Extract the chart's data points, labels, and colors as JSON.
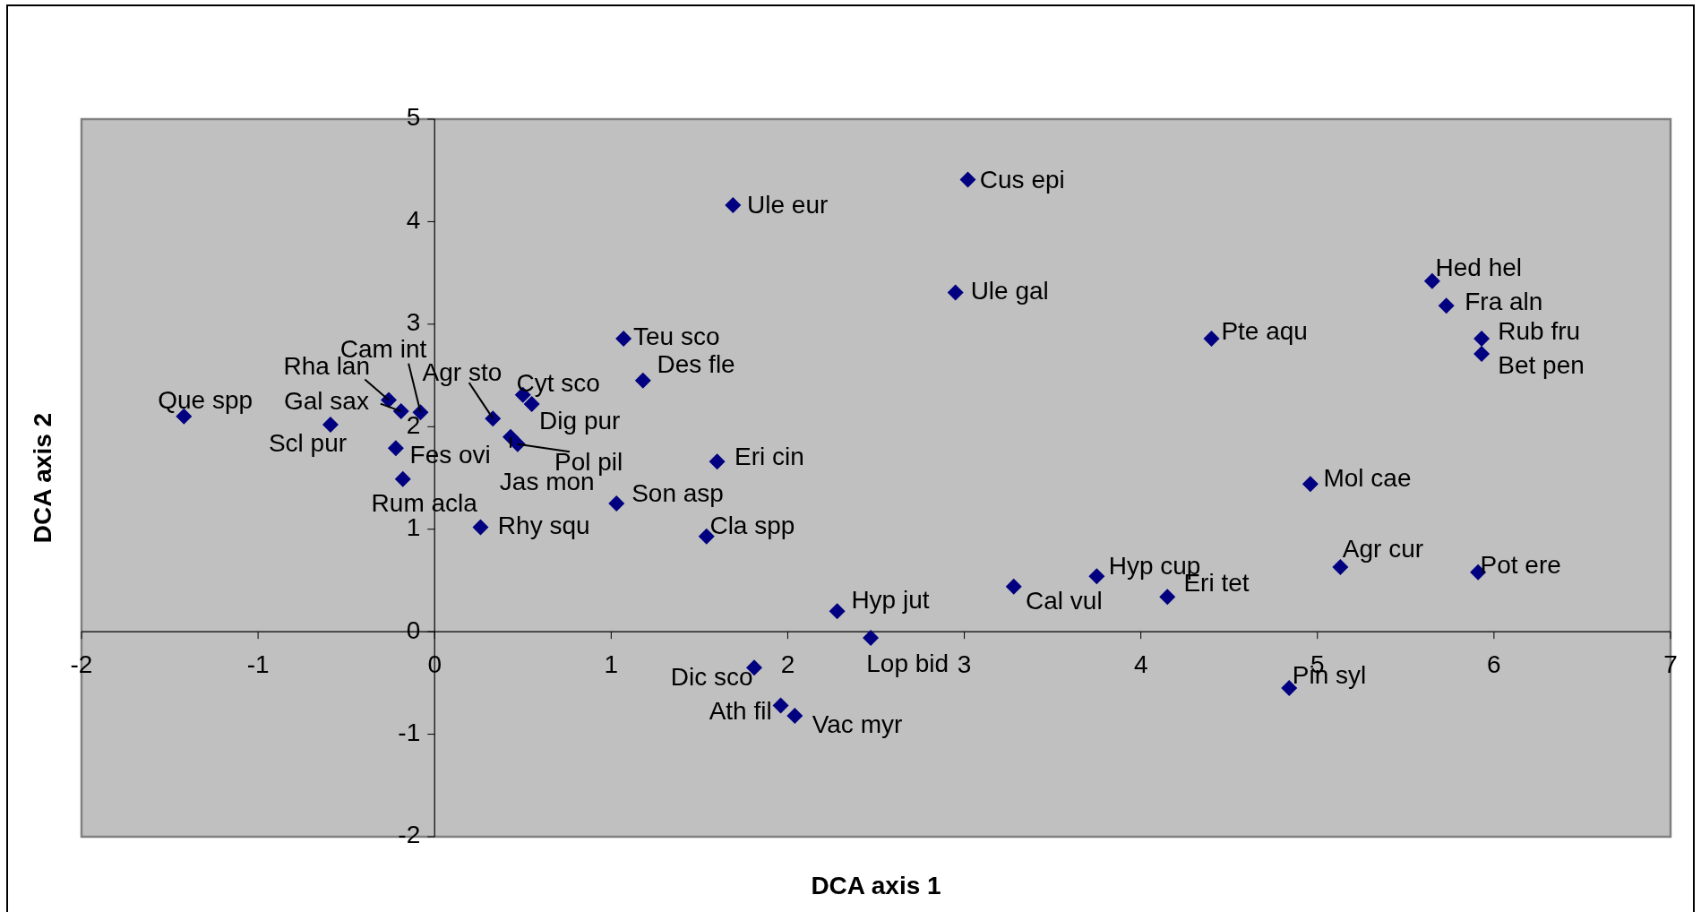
{
  "chart_data": {
    "type": "scatter",
    "xlabel": "DCA axis 1",
    "ylabel": "DCA axis 2",
    "xlim": [
      -2,
      7
    ],
    "ylim": [
      -2,
      5
    ],
    "xticks": [
      -2,
      -1,
      0,
      1,
      2,
      3,
      4,
      5,
      6,
      7
    ],
    "yticks": [
      -2,
      -1,
      0,
      1,
      2,
      3,
      4,
      5
    ],
    "grid": false,
    "marker": "diamond",
    "series": [
      {
        "color": "#000080",
        "x": [
          -1.42,
          -0.59,
          -0.26,
          -0.19,
          -0.08,
          -0.22,
          -0.18,
          0.33,
          0.5,
          0.55,
          0.47,
          0.43,
          1.07,
          1.18,
          1.03,
          0.26,
          1.69,
          3.02,
          2.95,
          1.6,
          1.54,
          2.28,
          2.47,
          1.81,
          1.96,
          2.04,
          3.28,
          3.75,
          4.15,
          4.84,
          5.13,
          5.91,
          4.96,
          4.4,
          5.65,
          5.73,
          5.93,
          5.93
        ],
        "values": [
          2.1,
          2.02,
          2.26,
          2.15,
          2.14,
          1.79,
          1.49,
          2.08,
          2.31,
          2.22,
          1.83,
          1.9,
          2.86,
          2.45,
          1.25,
          1.02,
          4.16,
          4.41,
          3.31,
          1.66,
          0.93,
          0.2,
          -0.06,
          -0.35,
          -0.72,
          -0.82,
          0.44,
          0.54,
          0.34,
          -0.55,
          0.63,
          0.58,
          1.44,
          2.86,
          3.42,
          3.18,
          2.86,
          2.71
        ]
      }
    ],
    "annotations": [
      {
        "text": "Que spp",
        "x": -1.42,
        "y": 2.1
      },
      {
        "text": "Scl pur",
        "x": -0.59,
        "y": 2.02
      },
      {
        "text": "Rha lan",
        "x": -0.26,
        "y": 2.26
      },
      {
        "text": "Gal sax",
        "x": -0.19,
        "y": 2.15
      },
      {
        "text": "Cam int",
        "x": -0.08,
        "y": 2.14
      },
      {
        "text": "Fes ovi",
        "x": -0.22,
        "y": 1.79
      },
      {
        "text": "Rum acla",
        "x": -0.18,
        "y": 1.49
      },
      {
        "text": "Agr sto",
        "x": 0.33,
        "y": 2.08
      },
      {
        "text": "Cyt sco",
        "x": 0.5,
        "y": 2.31
      },
      {
        "text": "Dig pur",
        "x": 0.55,
        "y": 2.22
      },
      {
        "text": "Pol pil",
        "x": 0.47,
        "y": 1.83
      },
      {
        "text": "Jas mon",
        "x": 0.43,
        "y": 1.9
      },
      {
        "text": "Teu sco",
        "x": 1.07,
        "y": 2.86
      },
      {
        "text": "Des fle",
        "x": 1.18,
        "y": 2.45
      },
      {
        "text": "Son asp",
        "x": 1.03,
        "y": 1.25
      },
      {
        "text": "Rhy squ",
        "x": 0.26,
        "y": 1.02
      },
      {
        "text": "Ule eur",
        "x": 1.69,
        "y": 4.16
      },
      {
        "text": "Cus epi",
        "x": 3.02,
        "y": 4.41
      },
      {
        "text": "Ule gal",
        "x": 2.95,
        "y": 3.31
      },
      {
        "text": "Eri cin",
        "x": 1.6,
        "y": 1.66
      },
      {
        "text": "Cla spp",
        "x": 1.54,
        "y": 0.93
      },
      {
        "text": "Hyp jut",
        "x": 2.28,
        "y": 0.2
      },
      {
        "text": "Lop bid",
        "x": 2.47,
        "y": -0.06
      },
      {
        "text": "Dic sco",
        "x": 1.81,
        "y": -0.35
      },
      {
        "text": "Ath fil",
        "x": 1.96,
        "y": -0.72
      },
      {
        "text": "Vac myr",
        "x": 2.04,
        "y": -0.82
      },
      {
        "text": "Cal vul",
        "x": 3.28,
        "y": 0.44
      },
      {
        "text": "Hyp cup",
        "x": 3.75,
        "y": 0.54
      },
      {
        "text": "Eri tet",
        "x": 4.15,
        "y": 0.34
      },
      {
        "text": "Pin syl",
        "x": 4.84,
        "y": -0.55
      },
      {
        "text": "Agr cur",
        "x": 5.13,
        "y": 0.63
      },
      {
        "text": "Pot ere",
        "x": 5.91,
        "y": 0.58
      },
      {
        "text": "Mol cae",
        "x": 4.96,
        "y": 1.44
      },
      {
        "text": "Pte aqu",
        "x": 4.4,
        "y": 2.86
      },
      {
        "text": "Hed hel",
        "x": 5.65,
        "y": 3.42
      },
      {
        "text": "Fra aln",
        "x": 5.73,
        "y": 3.18
      },
      {
        "text": "Rub fru",
        "x": 5.93,
        "y": 2.86
      },
      {
        "text": "Bet pen",
        "x": 5.93,
        "y": 2.71
      }
    ]
  }
}
